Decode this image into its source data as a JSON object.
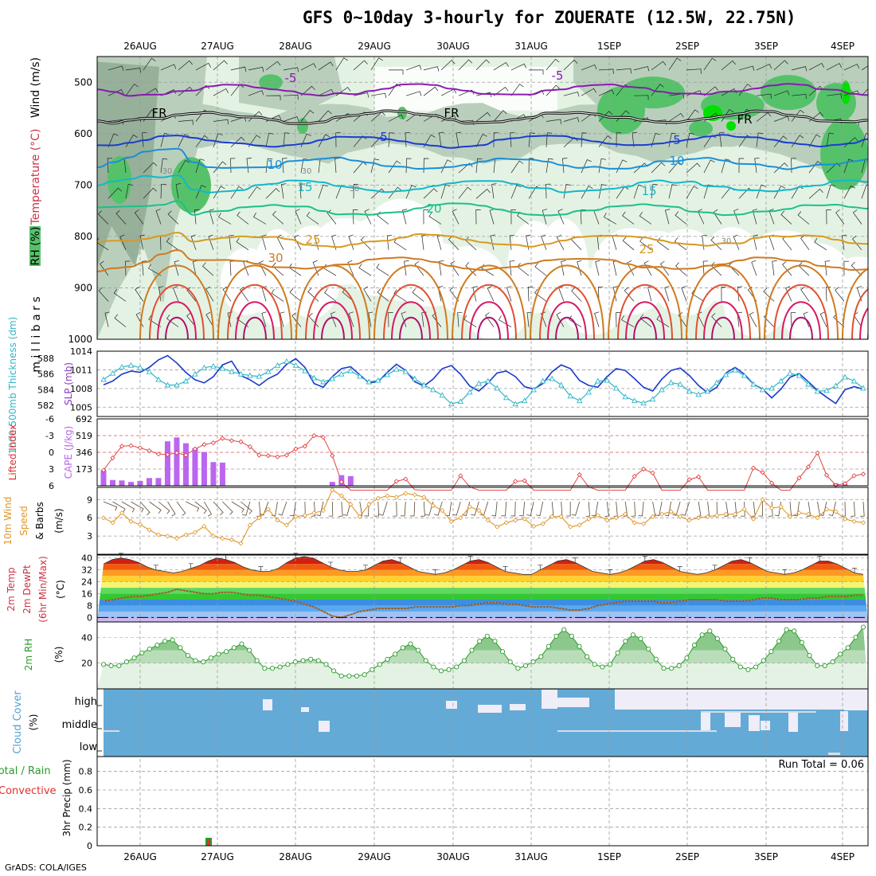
{
  "title": "GFS 0~10day 3-hourly for ZOUERATE (12.5W, 22.75N)",
  "credit": "GrADS: COLA/IGES",
  "colors": {
    "rh_light": "#e4f2e4",
    "rh_mid": "#b9cfbc",
    "rh_dark": "#8da891",
    "rh_green": "#55c26a",
    "rh_bright": "#00e000",
    "slp": "#1b39c8",
    "thickness": "#2fb6c8",
    "cape": "#bb66ee",
    "lifted": "#e03030",
    "wind10": "#e0962a",
    "rh2m": "#2a9a2a",
    "cloud": "#64aad6",
    "cloud_clear": "#efedf7"
  },
  "chart_data": [
    {
      "id": "upper_air",
      "type": "heatmap",
      "ylabel": "millibars",
      "side_labels": [
        "RH (%)",
        "Temperature (°C)",
        "Wind (m/s)"
      ],
      "y_ticks": [
        "500",
        "600",
        "700",
        "800",
        "900",
        "1000"
      ],
      "ylim": [
        1000,
        450
      ],
      "x_ticks": [
        "26AUG",
        "27AUG",
        "28AUG",
        "29AUG",
        "30AUG",
        "31AUG",
        "1SEP",
        "2SEP",
        "3SEP",
        "4SEP"
      ],
      "contour_labels": [
        "-5",
        "-5",
        "FR",
        "FR",
        "FR",
        "5",
        "5",
        "10",
        "10",
        "15",
        "15",
        "20",
        "25",
        "25",
        "30",
        "30",
        "30",
        "30",
        "30"
      ],
      "temperature_levels": [
        {
          "label": "-5",
          "mb": 512
        },
        {
          "label": "FR",
          "mb": 565
        },
        {
          "label": "5",
          "mb": 612
        },
        {
          "label": "10",
          "mb": 655
        },
        {
          "label": "15",
          "mb": 700
        },
        {
          "label": "20",
          "mb": 745
        },
        {
          "label": "25",
          "mb": 805
        },
        {
          "label": "30",
          "mb": 850
        }
      ]
    },
    {
      "id": "slp_thickness",
      "type": "line",
      "left_label": "1000-500mb Thickness (dm)",
      "right_label": "SLP (mb)",
      "left_ticks": [
        "588",
        "586",
        "584",
        "582"
      ],
      "right_ticks": [
        "1014",
        "1011",
        "1008",
        "1005"
      ],
      "series": [
        {
          "name": "SLP (mb)",
          "values": [
            1008.6,
            1009.2,
            1010.3,
            1010.8,
            1010.6,
            1011.4,
            1012.6,
            1013.3,
            1012.1,
            1010.6,
            1009.4,
            1008.9,
            1009.9,
            1011.8,
            1012.4,
            1010.1,
            1009.4,
            1008.5,
            1009.6,
            1010.3,
            1011.9,
            1012.8,
            1011.4,
            1008.8,
            1008.2,
            1009.9,
            1011.2,
            1011.5,
            1010.2,
            1008.9,
            1009.1,
            1010.6,
            1011.9,
            1010.9,
            1009.1,
            1008.4,
            1009.5,
            1011.2,
            1011.7,
            1010.3,
            1008.4,
            1007.6,
            1008.9,
            1010.5,
            1010.8,
            1009.9,
            1008.3,
            1007.9,
            1008.8,
            1010.7,
            1011.8,
            1011.2,
            1009.3,
            1008.5,
            1008.2,
            1009.9,
            1011.2,
            1010.9,
            1009.6,
            1008.2,
            1007.6,
            1009.5,
            1010.9,
            1011.3,
            1010.1,
            1008.5,
            1007.3,
            1008.2,
            1010.5,
            1011.4,
            1010.3,
            1008.7,
            1007.9,
            1006.5,
            1007.9,
            1009.8,
            1010.4,
            1009.1,
            1007.7,
            1006.6,
            1005.6,
            1007.8,
            1008.3,
            1007.9
          ]
        },
        {
          "name": "1000-500mb Thickness (dm)",
          "values": [
            585.3,
            586.1,
            586.9,
            587.1,
            586.8,
            586.3,
            585.3,
            584.6,
            584.6,
            585.1,
            586.0,
            586.8,
            587.0,
            586.7,
            586.3,
            586.0,
            585.8,
            585.7,
            586.3,
            587.1,
            587.6,
            587.1,
            586.4,
            585.5,
            585.0,
            585.4,
            586.0,
            586.4,
            585.7,
            585.0,
            585.2,
            585.9,
            586.6,
            586.3,
            585.4,
            584.6,
            584.0,
            583.3,
            582.2,
            582.5,
            583.7,
            584.8,
            585.1,
            584.2,
            583.0,
            582.2,
            582.6,
            584.0,
            585.1,
            585.4,
            584.6,
            583.2,
            582.6,
            583.7,
            585.1,
            585.2,
            584.2,
            583.1,
            582.6,
            582.3,
            582.8,
            584.0,
            584.9,
            584.7,
            583.8,
            583.4,
            583.8,
            584.9,
            585.9,
            586.5,
            585.8,
            584.7,
            584.0,
            584.2,
            585.1,
            586.1,
            585.8,
            584.7,
            583.8,
            583.9,
            584.5,
            585.6,
            585.1,
            584.2
          ]
        }
      ]
    },
    {
      "id": "cape_li",
      "type": "bar",
      "left_label": "Lifted Index",
      "right_label": "CAPE (J/kg)",
      "left_ticks": [
        "-6",
        "-3",
        "0",
        "3",
        "6"
      ],
      "right_ticks": [
        "692",
        "519",
        "346",
        "173"
      ],
      "lifted_index": [
        3.2,
        1.0,
        -1.1,
        -1.2,
        -0.8,
        -0.3,
        0.3,
        0.4,
        0.1,
        0.5,
        -0.6,
        -1.4,
        -1.7,
        -2.5,
        -2.1,
        -1.9,
        -1.0,
        0.5,
        0.6,
        0.8,
        0.5,
        -0.6,
        -1.1,
        -3.0,
        -2.7,
        0.6,
        5.3,
        8.0,
        9.0,
        8.2,
        9.6,
        9.5,
        5.2,
        4.8,
        6.7,
        8.5,
        9.2,
        9.6,
        7.0,
        4.2,
        6.2,
        8.1,
        8.0,
        9.3,
        9.2,
        5.2,
        5.1,
        7.8,
        9.1,
        9.6,
        9.4,
        6.8,
        4.0,
        6.2,
        7.7,
        9.3,
        9.6,
        8.1,
        4.3,
        3.0,
        3.7,
        7.1,
        9.3,
        9.1,
        4.9,
        4.4,
        7.0,
        7.5,
        9.7,
        9.2,
        6.8,
        2.8,
        3.6,
        5.5,
        8.2,
        8.4,
        4.6,
        2.6,
        0.1,
        4.1,
        5.9,
        5.6,
        4.2,
        3.9
      ],
      "cape": [
        160,
        60,
        55,
        40,
        50,
        80,
        80,
        460,
        500,
        440,
        390,
        350,
        245,
        240,
        0,
        0,
        0,
        0,
        0,
        0,
        0,
        0,
        0,
        0,
        0,
        40,
        110,
        100,
        0,
        0,
        0,
        0,
        0,
        0,
        0,
        0,
        0,
        0,
        0,
        0,
        0,
        0,
        0,
        0,
        0,
        0,
        0,
        0,
        0,
        0,
        0,
        0,
        0,
        0,
        0,
        0,
        0,
        0,
        0,
        0,
        0,
        0,
        0,
        0,
        0,
        0,
        0,
        0,
        0,
        0,
        0,
        0,
        0,
        0,
        0,
        0,
        0,
        0,
        0,
        0,
        25,
        15,
        0,
        0
      ]
    },
    {
      "id": "wind10m",
      "type": "line",
      "left_label": "10m Wind Speed & Barbs",
      "unit": "(m/s)",
      "y_ticks": [
        "9",
        "6",
        "3"
      ],
      "series": [
        {
          "name": "10m Wind Speed",
          "values": [
            6.0,
            5.2,
            6.8,
            5.4,
            4.9,
            4.0,
            3.2,
            3.0,
            2.6,
            3.2,
            3.6,
            4.6,
            3.0,
            2.6,
            2.4,
            1.8,
            4.8,
            6.0,
            7.4,
            5.6,
            4.8,
            6.2,
            6.4,
            6.8,
            7.2,
            10.6,
            9.6,
            8.2,
            6.2,
            8.2,
            9.2,
            9.6,
            9.4,
            10.0,
            9.8,
            9.4,
            8.0,
            7.2,
            5.4,
            6.0,
            7.8,
            7.2,
            5.6,
            4.5,
            5.2,
            5.6,
            5.8,
            4.6,
            5.0,
            6.2,
            6.2,
            4.5,
            4.8,
            5.8,
            6.4,
            5.6,
            6.0,
            6.6,
            5.2,
            5.0,
            6.2,
            6.6,
            7.0,
            6.2,
            5.6,
            6.0,
            6.2,
            6.4,
            6.6,
            6.6,
            7.4,
            5.8,
            9.0,
            7.6,
            7.8,
            6.2,
            6.8,
            6.6,
            6.0,
            7.4,
            7.0,
            5.8,
            5.4,
            5.2
          ]
        }
      ]
    },
    {
      "id": "temp2m",
      "type": "area",
      "left_label": "2m Temp 2m DewPt (6hr Min/Max)",
      "unit": "(°C)",
      "y_ticks": [
        "40",
        "32",
        "24",
        "16",
        "8",
        "0"
      ],
      "series": [
        {
          "name": "2m Temp",
          "values": [
            36,
            39,
            40,
            39,
            37,
            34,
            32,
            31,
            30,
            31,
            33,
            35,
            38,
            40,
            39,
            37,
            34,
            32,
            31,
            31,
            33,
            37,
            40,
            41,
            40,
            37,
            34,
            32,
            31,
            31,
            32,
            35,
            38,
            39,
            37,
            34,
            31,
            30,
            29,
            30,
            32,
            35,
            38,
            39,
            37,
            34,
            31,
            30,
            29,
            29,
            32,
            35,
            38,
            39,
            37,
            34,
            31,
            30,
            29,
            30,
            32,
            35,
            38,
            39,
            37,
            34,
            31,
            30,
            29,
            30,
            32,
            35,
            38,
            39,
            37,
            34,
            31,
            30,
            29,
            30,
            32,
            35,
            38,
            38,
            36,
            33,
            30,
            29
          ]
        },
        {
          "name": "2m DewPt",
          "values": [
            11,
            12,
            13,
            14,
            14,
            15,
            16,
            17,
            19,
            18,
            17,
            16,
            16,
            17,
            17,
            16,
            15,
            15,
            14,
            13,
            12,
            11,
            9,
            7,
            4,
            1,
            0,
            2,
            4,
            5,
            6,
            6,
            6,
            6,
            7,
            7,
            7,
            7,
            7,
            8,
            8,
            9,
            10,
            10,
            9,
            9,
            8,
            7,
            7,
            7,
            6,
            5,
            5,
            6,
            8,
            9,
            10,
            11,
            11,
            11,
            11,
            10,
            10,
            11,
            12,
            12,
            12,
            12,
            11,
            11,
            11,
            12,
            13,
            13,
            12,
            12,
            12,
            13,
            13,
            14,
            14,
            14,
            15,
            15
          ]
        }
      ]
    },
    {
      "id": "rh2m",
      "type": "area",
      "left_label": "2m RH",
      "unit": "(%)",
      "y_ticks": [
        "40",
        "20"
      ],
      "series": [
        {
          "name": "2m RH",
          "values": [
            19,
            18,
            18,
            21,
            24,
            28,
            31,
            34,
            37,
            38,
            32,
            26,
            22,
            21,
            24,
            27,
            29,
            32,
            35,
            30,
            22,
            16,
            16,
            17,
            19,
            21,
            22,
            23,
            22,
            19,
            14,
            10,
            10,
            10,
            11,
            15,
            19,
            23,
            27,
            32,
            35,
            30,
            22,
            17,
            14,
            15,
            17,
            22,
            30,
            37,
            41,
            37,
            29,
            21,
            16,
            18,
            21,
            25,
            33,
            41,
            46,
            41,
            33,
            25,
            19,
            17,
            19,
            28,
            37,
            42,
            39,
            31,
            23,
            16,
            16,
            18,
            24,
            34,
            42,
            45,
            39,
            31,
            23,
            17,
            15,
            17,
            22,
            29,
            37,
            46,
            45,
            36,
            26,
            18,
            18,
            21,
            27,
            32,
            40,
            48
          ]
        }
      ]
    },
    {
      "id": "cloud",
      "type": "heatmap",
      "left_label": "Cloud Cover",
      "unit": "(%)",
      "levels": [
        "high",
        "middle",
        "low"
      ]
    },
    {
      "id": "precip",
      "type": "bar",
      "left_label": "Total / Rain Convective",
      "unit": "3hr Precip (mm)",
      "y_ticks": [
        "0.8",
        "0.6",
        "0.4",
        "0.2",
        "0"
      ],
      "annotation": "Run Total = 0.06",
      "x_ticks": [
        "26AUG",
        "27AUG",
        "28AUG",
        "29AUG",
        "30AUG",
        "31AUG",
        "1SEP",
        "2SEP",
        "3SEP",
        "4SEP"
      ],
      "values": [
        0,
        0,
        0,
        0,
        0,
        0,
        0,
        0,
        0,
        0,
        0,
        0,
        0,
        0,
        0,
        0.06
      ]
    }
  ]
}
